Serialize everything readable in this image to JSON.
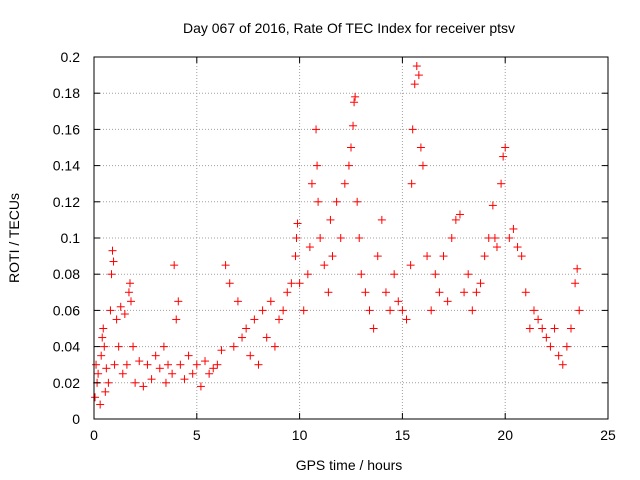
{
  "chart_data": {
    "type": "scatter",
    "title": "Day 067 of 2016, Rate Of TEC Index for receiver ptsv",
    "xlabel": "GPS time / hours",
    "ylabel": "ROTI / TECUs",
    "xlim": [
      0,
      25
    ],
    "ylim": [
      0,
      0.2
    ],
    "xticks": [
      "0",
      "5",
      "10",
      "15",
      "20",
      "25"
    ],
    "yticks": [
      "0",
      "0.02",
      "0.04",
      "0.06",
      "0.08",
      "0.1",
      "0.12",
      "0.14",
      "0.16",
      "0.18",
      "0.2"
    ],
    "grid": true,
    "marker": "plus",
    "series": [
      {
        "color": "#ff0000",
        "x": [
          0.05,
          0.1,
          0.15,
          0.2,
          0.3,
          0.35,
          0.4,
          0.45,
          0.5,
          0.55,
          0.6,
          0.7,
          0.8,
          0.85,
          0.9,
          0.95,
          1.0,
          1.1,
          1.2,
          1.3,
          1.4,
          1.5,
          1.6,
          1.7,
          1.75,
          1.8,
          1.9,
          2.0,
          2.2,
          2.4,
          2.6,
          2.8,
          3.0,
          3.2,
          3.4,
          3.5,
          3.6,
          3.8,
          3.9,
          4.0,
          4.1,
          4.2,
          4.4,
          4.6,
          4.8,
          5.0,
          5.2,
          5.4,
          5.6,
          5.8,
          6.0,
          6.2,
          6.4,
          6.6,
          6.8,
          7.0,
          7.2,
          7.4,
          7.6,
          7.8,
          8.0,
          8.2,
          8.4,
          8.6,
          8.8,
          9.0,
          9.2,
          9.4,
          9.6,
          9.8,
          9.85,
          9.9,
          10.0,
          10.2,
          10.4,
          10.5,
          10.6,
          10.8,
          10.85,
          10.9,
          11.0,
          11.2,
          11.4,
          11.5,
          11.6,
          11.8,
          12.0,
          12.2,
          12.4,
          12.5,
          12.6,
          12.65,
          12.7,
          12.8,
          12.9,
          13.0,
          13.2,
          13.4,
          13.6,
          13.8,
          14.0,
          14.2,
          14.4,
          14.6,
          14.8,
          15.0,
          15.2,
          15.4,
          15.45,
          15.5,
          15.6,
          15.7,
          15.8,
          15.9,
          16.0,
          16.2,
          16.4,
          16.6,
          16.8,
          17.0,
          17.2,
          17.4,
          17.6,
          17.8,
          18.0,
          18.2,
          18.4,
          18.6,
          18.8,
          19.0,
          19.2,
          19.4,
          19.5,
          19.6,
          19.8,
          19.9,
          20.0,
          20.2,
          20.4,
          20.6,
          20.8,
          21.0,
          21.2,
          21.4,
          21.6,
          21.8,
          22.0,
          22.2,
          22.4,
          22.6,
          22.8,
          23.0,
          23.2,
          23.4,
          23.5,
          23.6
        ],
        "y": [
          0.012,
          0.03,
          0.02,
          0.025,
          0.008,
          0.035,
          0.045,
          0.05,
          0.04,
          0.015,
          0.028,
          0.02,
          0.06,
          0.08,
          0.093,
          0.087,
          0.03,
          0.055,
          0.04,
          0.062,
          0.025,
          0.058,
          0.03,
          0.07,
          0.075,
          0.065,
          0.04,
          0.02,
          0.032,
          0.018,
          0.03,
          0.022,
          0.035,
          0.028,
          0.04,
          0.02,
          0.03,
          0.025,
          0.085,
          0.055,
          0.065,
          0.03,
          0.022,
          0.035,
          0.025,
          0.03,
          0.018,
          0.032,
          0.025,
          0.028,
          0.03,
          0.038,
          0.085,
          0.075,
          0.04,
          0.065,
          0.045,
          0.05,
          0.035,
          0.055,
          0.03,
          0.06,
          0.045,
          0.065,
          0.04,
          0.055,
          0.06,
          0.07,
          0.075,
          0.09,
          0.1,
          0.108,
          0.075,
          0.06,
          0.08,
          0.095,
          0.13,
          0.16,
          0.14,
          0.12,
          0.1,
          0.085,
          0.07,
          0.11,
          0.09,
          0.12,
          0.1,
          0.13,
          0.14,
          0.15,
          0.162,
          0.175,
          0.178,
          0.12,
          0.1,
          0.08,
          0.07,
          0.06,
          0.05,
          0.09,
          0.11,
          0.07,
          0.06,
          0.08,
          0.065,
          0.06,
          0.055,
          0.085,
          0.13,
          0.16,
          0.185,
          0.195,
          0.19,
          0.15,
          0.14,
          0.09,
          0.06,
          0.08,
          0.07,
          0.09,
          0.065,
          0.1,
          0.11,
          0.113,
          0.07,
          0.08,
          0.06,
          0.07,
          0.075,
          0.09,
          0.1,
          0.118,
          0.1,
          0.095,
          0.13,
          0.145,
          0.15,
          0.1,
          0.105,
          0.095,
          0.09,
          0.07,
          0.05,
          0.06,
          0.055,
          0.05,
          0.045,
          0.04,
          0.05,
          0.035,
          0.03,
          0.04,
          0.05,
          0.075,
          0.083,
          0.06
        ]
      }
    ]
  }
}
